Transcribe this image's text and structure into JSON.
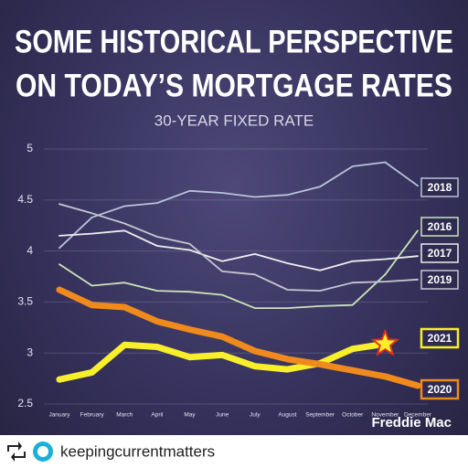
{
  "chart_data": {
    "type": "line",
    "title": "SOME HISTORICAL PERSPECTIVE",
    "title_line2": "ON TODAY’S MORTGAGE RATES",
    "subtitle": "30-YEAR FIXED RATE",
    "source": "Freddie Mac",
    "categories": [
      "January",
      "February",
      "March",
      "April",
      "May",
      "June",
      "July",
      "August",
      "September",
      "October",
      "November",
      "December"
    ],
    "ylim": [
      2.5,
      5
    ],
    "yticks": [
      2.5,
      3,
      3.5,
      4,
      4.5,
      5
    ],
    "grid": true,
    "series": [
      {
        "name": "2018",
        "color": "#b9c3da",
        "values": [
          4.03,
          4.33,
          4.44,
          4.47,
          4.59,
          4.57,
          4.53,
          4.55,
          4.63,
          4.83,
          4.87,
          4.64
        ]
      },
      {
        "name": "2016",
        "color": "#cbe3b9",
        "values": [
          3.87,
          3.66,
          3.69,
          3.61,
          3.6,
          3.57,
          3.44,
          3.44,
          3.46,
          3.47,
          3.77,
          4.2
        ]
      },
      {
        "name": "2017",
        "color": "#eeeeee",
        "values": [
          4.15,
          4.17,
          4.2,
          4.05,
          4.01,
          3.9,
          3.97,
          3.88,
          3.81,
          3.9,
          3.92,
          3.95
        ]
      },
      {
        "name": "2019",
        "color": "#c6c6d2",
        "values": [
          4.46,
          4.37,
          4.27,
          4.14,
          4.07,
          3.8,
          3.77,
          3.62,
          3.61,
          3.69,
          3.7,
          3.72
        ]
      },
      {
        "name": "2021",
        "color": "#f6ef2a",
        "values": [
          2.74,
          2.81,
          3.08,
          3.06,
          2.96,
          2.98,
          2.87,
          2.84,
          2.9,
          3.04,
          3.09,
          null
        ]
      },
      {
        "name": "2020",
        "color": "#f08a1c",
        "values": [
          3.62,
          3.47,
          3.45,
          3.31,
          3.23,
          3.16,
          3.02,
          2.94,
          2.89,
          2.83,
          2.77,
          2.68
        ]
      }
    ]
  },
  "repost": {
    "user": "keepingcurrentmatters"
  }
}
